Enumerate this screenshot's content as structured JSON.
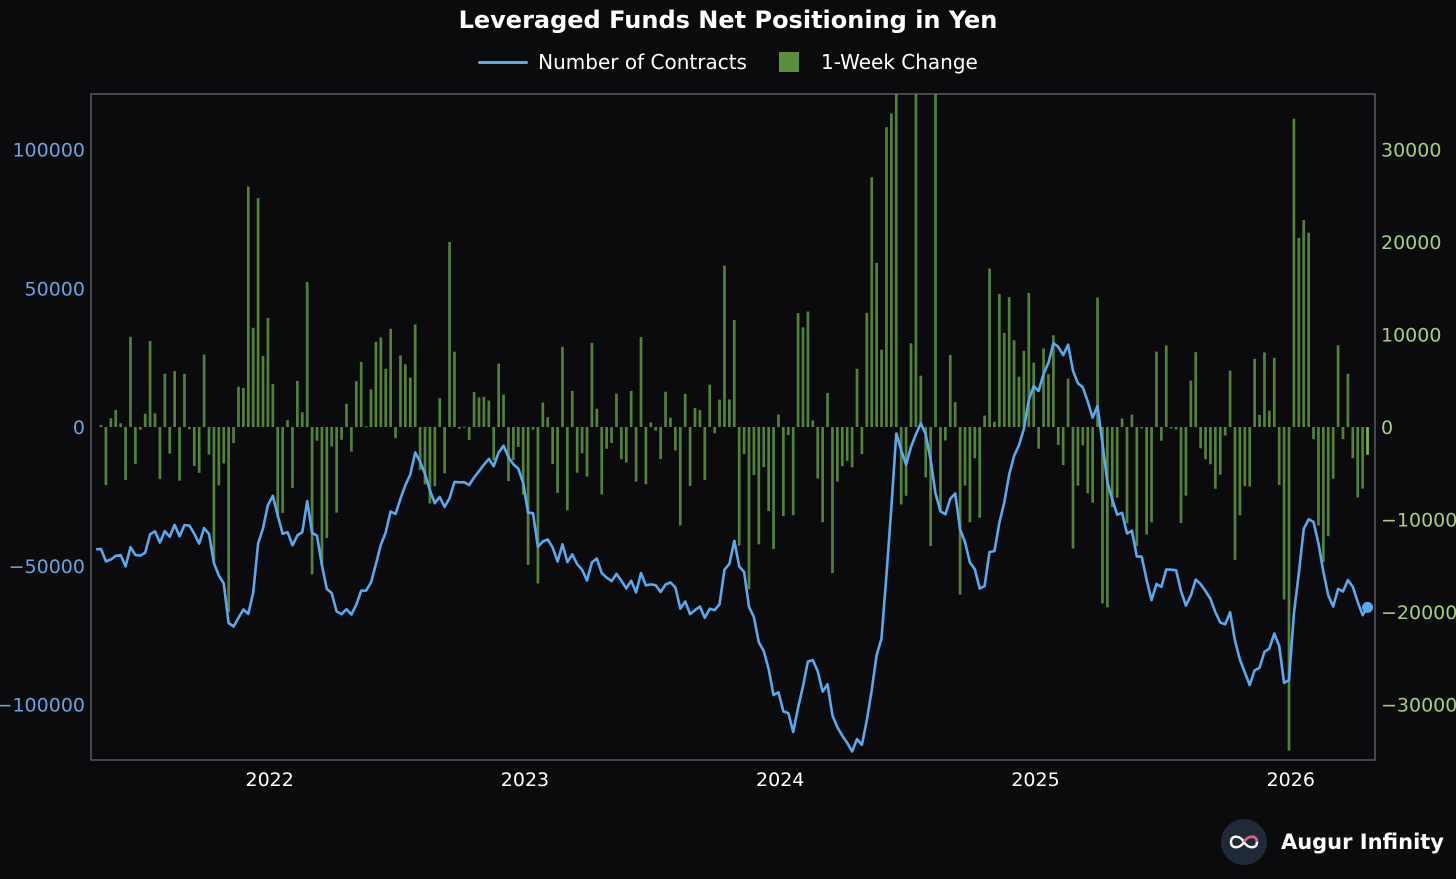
{
  "chart_data": {
    "type": "bar+line",
    "title": "Leveraged Funds Net Positioning in Yen",
    "legend": {
      "line_label": "Number of Contracts",
      "bar_label": "1-Week Change",
      "placement": "top-center"
    },
    "colors": {
      "background": "#0b0b0d",
      "line": "#5aa9ee",
      "bar": "#5b8f3e",
      "last_bar": "#86c95a",
      "left_axis_text": "#6aa3dd",
      "right_axis_text": "#a6cf7b",
      "frame": "#6b6f78"
    },
    "x_axis": {
      "tick_labels": [
        "2022",
        "2023",
        "2024",
        "2025",
        "2026"
      ],
      "tick_years": [
        2022,
        2023,
        2024,
        2025,
        2026
      ],
      "range": [
        2021.3,
        2026.33
      ]
    },
    "y_left": {
      "label": "Number of Contracts",
      "ylim": [
        -120000,
        120000
      ],
      "ticks": [
        -100000,
        -50000,
        0,
        50000,
        100000
      ],
      "tick_labels": [
        "−100000",
        "−50000",
        "0",
        "50000",
        "100000"
      ]
    },
    "y_right": {
      "label": "1-Week Change",
      "ylim": [
        -36000,
        36000
      ],
      "ticks": [
        -30000,
        -20000,
        -10000,
        0,
        10000,
        20000,
        30000
      ],
      "tick_labels": [
        "−30000",
        "−20000",
        "−10000",
        "0",
        "10000",
        "20000",
        "30000"
      ]
    },
    "line_anchors": {
      "description": "Approximate weekly net position of leveraged funds (contracts), read off the left axis",
      "x": [
        2021.32,
        2021.4,
        2021.48,
        2021.56,
        2021.62,
        2021.7,
        2021.78,
        2021.85,
        2021.92,
        2022.0,
        2022.08,
        2022.15,
        2022.22,
        2022.28,
        2022.35,
        2022.42,
        2022.5,
        2022.58,
        2022.66,
        2022.72,
        2022.78,
        2022.85,
        2022.92,
        2022.98,
        2023.04,
        2023.1,
        2023.16,
        2023.24,
        2023.32,
        2023.4,
        2023.5,
        2023.6,
        2023.7,
        2023.76,
        2023.82,
        2023.88,
        2023.94,
        2024.0,
        2024.06,
        2024.12,
        2024.18,
        2024.26,
        2024.32,
        2024.4,
        2024.45,
        2024.5,
        2024.55,
        2024.6,
        2024.64,
        2024.68,
        2024.72,
        2024.78,
        2024.84,
        2024.88,
        2024.94,
        2025.0,
        2025.06,
        2025.12,
        2025.18,
        2025.24,
        2025.3,
        2025.38,
        2025.46,
        2025.52,
        2025.58,
        2025.64,
        2025.7,
        2025.76,
        2025.82,
        2025.88,
        2025.94,
        2025.98,
        2026.02,
        2026.06,
        2026.12,
        2026.16,
        2026.2,
        2026.24,
        2026.28,
        2026.31
      ],
      "y": [
        -44000,
        -46000,
        -47000,
        -38000,
        -37000,
        -35000,
        -45000,
        -72000,
        -65000,
        -22000,
        -43000,
        -30000,
        -55000,
        -70000,
        -60000,
        -48000,
        -28000,
        -10000,
        -28000,
        -22000,
        -25000,
        -13000,
        -5000,
        -18000,
        -38000,
        -42000,
        -48000,
        -52000,
        -50000,
        -60000,
        -52000,
        -62000,
        -65000,
        -63000,
        -38000,
        -62000,
        -82000,
        -100000,
        -110000,
        -80000,
        -95000,
        -112000,
        -114000,
        -75000,
        -5000,
        -15000,
        2000,
        -20000,
        -35000,
        -25000,
        -45000,
        -58000,
        -45000,
        -25000,
        -5000,
        15000,
        25000,
        30000,
        15000,
        5000,
        -25000,
        -40000,
        -63000,
        -48000,
        -62000,
        -53000,
        -65000,
        -68000,
        -92000,
        -84000,
        -70000,
        -100000,
        -60000,
        -28000,
        -45000,
        -70000,
        -58000,
        -60000,
        -64000,
        -65000
      ]
    },
    "bars_tall": {
      "description": "Approximate weekly 1-week change extremes read off the right axis",
      "x": [
        2021.92,
        2022.7,
        2024.35,
        2024.53,
        2024.6,
        2025.25,
        2026.0,
        2026.07
      ],
      "values": [
        26000,
        20000,
        27000,
        38000,
        37000,
        14000,
        -35000,
        21000
      ]
    }
  },
  "brand": {
    "name": "Augur Infinity",
    "icon": "infinity-logo-icon"
  }
}
